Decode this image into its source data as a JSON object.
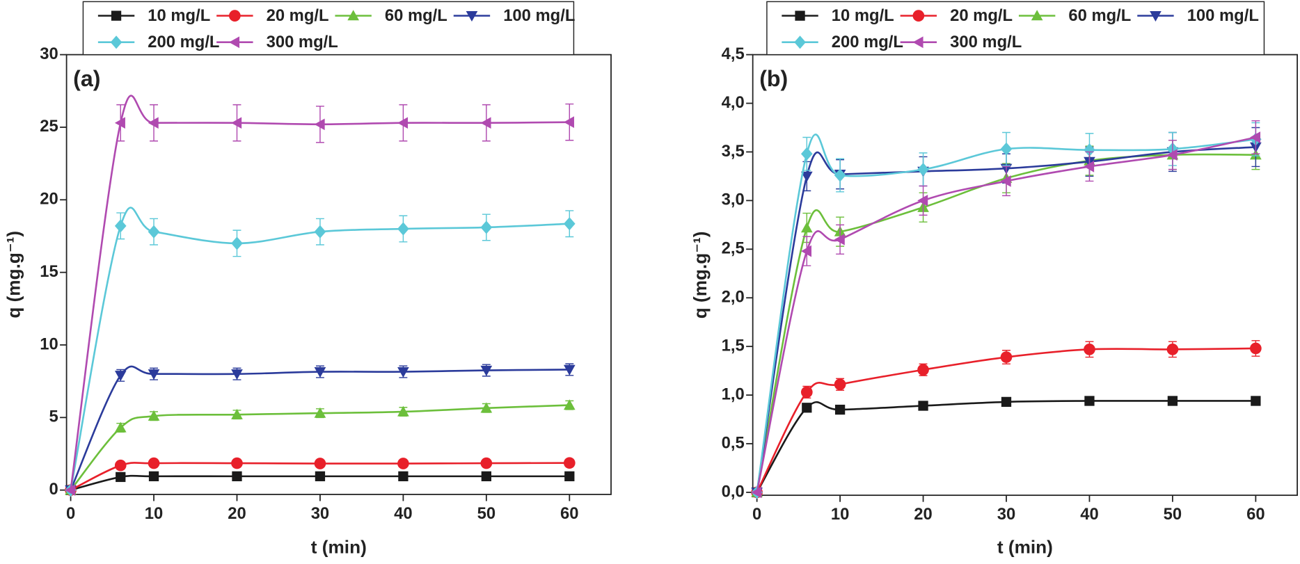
{
  "chart_data": [
    {
      "type": "line",
      "panel_label": "(a)",
      "x_label": "t (min)",
      "y_label": "q (mg.g⁻¹)",
      "legend": "top",
      "x": [
        0,
        6,
        10,
        20,
        30,
        40,
        50,
        60
      ],
      "xlim": [
        -0.5,
        65
      ],
      "xticks": [
        0,
        10,
        20,
        30,
        40,
        50,
        60
      ],
      "ylim": [
        -0.3,
        30
      ],
      "yticks": [
        0,
        5,
        10,
        15,
        20,
        25,
        30
      ],
      "series": [
        {
          "name": "10 mg/L",
          "color": "#1a1a1a",
          "marker": "square",
          "values": [
            0,
            0.9,
            0.95,
            0.95,
            0.95,
            0.95,
            0.95,
            0.95
          ],
          "errors": [
            null,
            0.1,
            0.1,
            0.1,
            0.1,
            0.1,
            0.1,
            0.1
          ]
        },
        {
          "name": "20 mg/L",
          "color": "#e8202a",
          "marker": "circle",
          "values": [
            0,
            1.7,
            1.85,
            1.85,
            1.83,
            1.83,
            1.85,
            1.87
          ],
          "errors": [
            null,
            0.15,
            0.15,
            0.15,
            0.15,
            0.15,
            0.15,
            0.15
          ]
        },
        {
          "name": "60 mg/L",
          "color": "#6cbf3b",
          "marker": "triangle-up",
          "values": [
            0,
            4.3,
            5.1,
            5.2,
            5.3,
            5.4,
            5.65,
            5.85
          ],
          "errors": [
            null,
            0.3,
            0.3,
            0.3,
            0.3,
            0.3,
            0.3,
            0.3
          ]
        },
        {
          "name": "100 mg/L",
          "color": "#2b3b9b",
          "marker": "triangle-down",
          "values": [
            0,
            7.9,
            8.0,
            8.0,
            8.15,
            8.15,
            8.25,
            8.3
          ],
          "errors": [
            null,
            0.4,
            0.4,
            0.4,
            0.4,
            0.4,
            0.4,
            0.4
          ]
        },
        {
          "name": "200 mg/L",
          "color": "#5bc8d8",
          "marker": "diamond",
          "values": [
            0,
            18.2,
            17.8,
            17.0,
            17.8,
            18.0,
            18.1,
            18.35
          ],
          "errors": [
            null,
            0.9,
            0.9,
            0.9,
            0.9,
            0.9,
            0.9,
            0.9
          ]
        },
        {
          "name": "300 mg/L",
          "color": "#b04ab0",
          "marker": "triangle-left",
          "values": [
            0,
            25.3,
            25.3,
            25.3,
            25.2,
            25.3,
            25.3,
            25.35
          ],
          "errors": [
            null,
            1.25,
            1.25,
            1.25,
            1.25,
            1.25,
            1.25,
            1.25
          ]
        }
      ]
    },
    {
      "type": "line",
      "panel_label": "(b)",
      "x_label": "t (min)",
      "y_label": "q (mg.g⁻¹)",
      "legend": "top",
      "x": [
        0,
        6,
        10,
        20,
        30,
        40,
        50,
        60
      ],
      "xlim": [
        -0.5,
        65
      ],
      "xticks": [
        0,
        10,
        20,
        30,
        40,
        50,
        60
      ],
      "ylim": [
        -0.03,
        4.5
      ],
      "yticks": [
        {
          "value": 0,
          "label": "0,0"
        },
        {
          "value": 0.5,
          "label": "0,5"
        },
        {
          "value": 1,
          "label": "1,0"
        },
        {
          "value": 1.5,
          "label": "1,5"
        },
        {
          "value": 2,
          "label": "2,0"
        },
        {
          "value": 2.5,
          "label": "2,5"
        },
        {
          "value": 3,
          "label": "3,0"
        },
        {
          "value": 3.5,
          "label": "3,5"
        },
        {
          "value": 4,
          "label": "4,0"
        },
        {
          "value": 4.5,
          "label": "4,5"
        }
      ],
      "series": [
        {
          "name": "10 mg/L",
          "color": "#1a1a1a",
          "marker": "square",
          "values": [
            0,
            0.87,
            0.85,
            0.89,
            0.93,
            0.94,
            0.94,
            0.94
          ],
          "errors": [
            null,
            0.03,
            0.03,
            0.03,
            0.03,
            0.03,
            0.03,
            0.03
          ]
        },
        {
          "name": "20 mg/L",
          "color": "#e8202a",
          "marker": "circle",
          "values": [
            0,
            1.03,
            1.11,
            1.26,
            1.39,
            1.47,
            1.47,
            1.48
          ],
          "errors": [
            null,
            0.06,
            0.06,
            0.06,
            0.07,
            0.08,
            0.08,
            0.08
          ]
        },
        {
          "name": "60 mg/L",
          "color": "#6cbf3b",
          "marker": "triangle-up",
          "values": [
            0,
            2.72,
            2.68,
            2.93,
            3.23,
            3.41,
            3.47,
            3.47
          ],
          "errors": [
            null,
            0.15,
            0.15,
            0.15,
            0.15,
            0.15,
            0.15,
            0.15
          ]
        },
        {
          "name": "100 mg/L",
          "color": "#2b3b9b",
          "marker": "triangle-down",
          "values": [
            0,
            3.25,
            3.27,
            3.3,
            3.33,
            3.4,
            3.5,
            3.55
          ],
          "errors": [
            null,
            0.15,
            0.15,
            0.15,
            0.15,
            0.15,
            0.2,
            0.2
          ]
        },
        {
          "name": "200 mg/L",
          "color": "#5bc8d8",
          "marker": "diamond",
          "values": [
            0,
            3.48,
            3.26,
            3.32,
            3.53,
            3.52,
            3.53,
            3.63
          ],
          "errors": [
            null,
            0.17,
            0.17,
            0.17,
            0.17,
            0.17,
            0.17,
            0.17
          ]
        },
        {
          "name": "300 mg/L",
          "color": "#b04ab0",
          "marker": "triangle-left",
          "values": [
            0,
            2.48,
            2.6,
            3.0,
            3.2,
            3.35,
            3.47,
            3.65
          ],
          "errors": [
            null,
            0.15,
            0.15,
            0.15,
            0.15,
            0.15,
            0.15,
            0.17
          ]
        }
      ]
    }
  ]
}
